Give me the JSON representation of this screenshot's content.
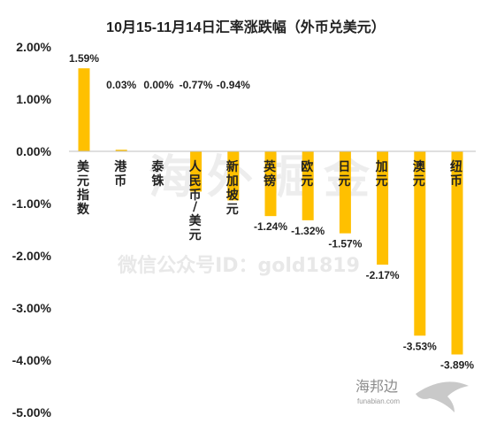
{
  "chart_data": {
    "type": "bar",
    "title": "10月15-11月14日汇率涨跌幅（外币兑美元）",
    "categories": [
      "美元指数",
      "港币",
      "泰铢",
      "人民币/美元",
      "新加坡元",
      "英镑",
      "欧元",
      "日元",
      "加元",
      "澳元",
      "纽币"
    ],
    "values": [
      1.59,
      0.03,
      0.0,
      -0.77,
      -0.94,
      -1.24,
      -1.32,
      -1.57,
      -2.17,
      -3.53,
      -3.89
    ],
    "data_labels": [
      "1.59%",
      "0.03%",
      "0.00%",
      "-0.77%",
      "-0.94%",
      "-1.24%",
      "-1.32%",
      "-1.57%",
      "-2.17%",
      "-3.53%",
      "-3.89%"
    ],
    "ylim": [
      -5.0,
      2.0
    ],
    "yticks": [
      2.0,
      1.0,
      0.0,
      -1.0,
      -2.0,
      -3.0,
      -4.0,
      -5.0
    ],
    "ytick_labels": [
      "2.00%",
      "1.00%",
      "0.00%",
      "-1.00%",
      "-2.00%",
      "-3.00%",
      "-4.00%",
      "-5.00%"
    ],
    "bar_color": "#FFC000",
    "grid": false,
    "legend": "none"
  },
  "watermark": {
    "big_text": "海外掘金",
    "line_text": "微信公众号ID：gold1819"
  },
  "logo": {
    "cn": "海邦边",
    "en": "funabian.com"
  }
}
